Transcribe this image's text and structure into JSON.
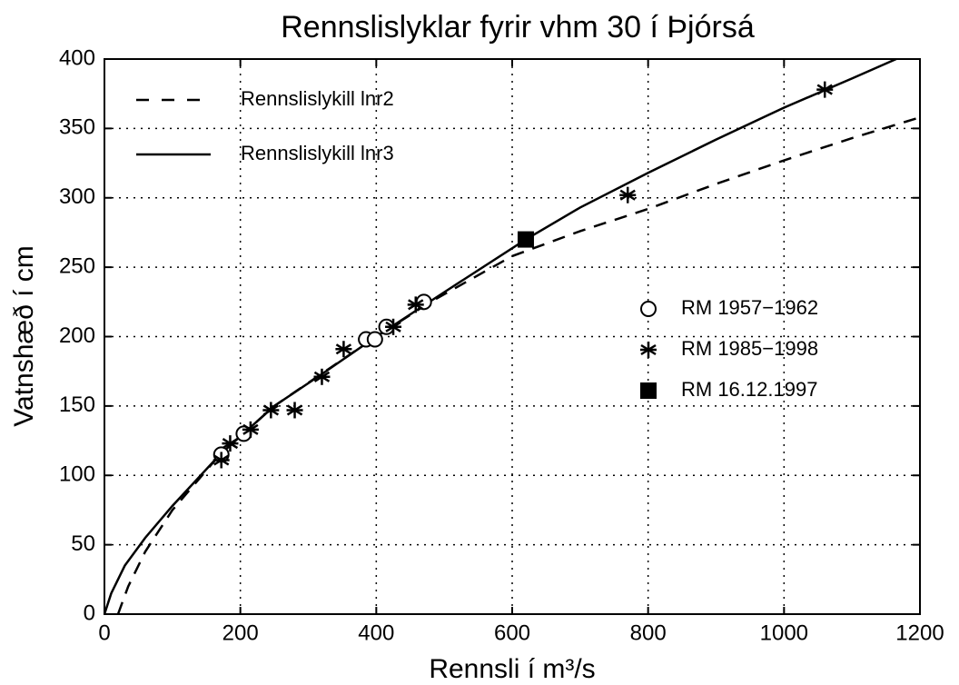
{
  "chart_data": {
    "type": "line",
    "title": "Rennslislyklar fyrir vhm 30 í Þjórsá",
    "x_label": "Rennsli í m³/s",
    "y_label": "Vatnshæð í cm",
    "xlim": [
      0,
      1200
    ],
    "xticks": [
      0,
      200,
      400,
      600,
      800,
      1000,
      1200
    ],
    "ylim": [
      0,
      400
    ],
    "yticks": [
      0,
      50,
      100,
      150,
      200,
      250,
      300,
      350,
      400
    ],
    "grid": true,
    "series": [
      {
        "name": "Rennslislykill lnr2",
        "style": "dashed",
        "color": "#000000",
        "x": [
          20,
          35,
          60,
          100,
          170,
          250,
          400,
          480,
          600,
          700,
          800,
          900,
          1000,
          1100,
          1200
        ],
        "values": [
          0,
          20,
          45,
          75,
          115,
          150,
          200,
          225,
          258,
          276,
          292,
          310,
          327,
          343,
          358
        ]
      },
      {
        "name": "Rennslislykill lnr3",
        "style": "solid",
        "color": "#000000",
        "x": [
          0,
          10,
          30,
          60,
          100,
          170,
          250,
          320,
          400,
          500,
          620,
          700,
          800,
          900,
          1000,
          1100,
          1165
        ],
        "values": [
          0,
          15,
          35,
          55,
          78,
          115,
          150,
          173,
          200,
          232,
          270,
          293,
          318,
          342,
          365,
          386,
          400
        ]
      },
      {
        "name": "RM 1957−1962",
        "style": "circle",
        "color": "#000000",
        "x": [
          172,
          205,
          385,
          398,
          415,
          470
        ],
        "values": [
          115,
          130,
          198,
          198,
          207,
          225
        ]
      },
      {
        "name": "RM 1985−1998",
        "style": "star",
        "color": "#000000",
        "x": [
          172,
          185,
          215,
          245,
          280,
          320,
          352,
          425,
          458,
          770,
          1060
        ],
        "values": [
          111,
          123,
          133,
          147,
          147,
          171,
          191,
          207,
          223,
          302,
          378
        ]
      },
      {
        "name": "RM 16.12.1997",
        "style": "square",
        "color": "#000000",
        "x": [
          620
        ],
        "values": [
          270
        ]
      }
    ]
  }
}
